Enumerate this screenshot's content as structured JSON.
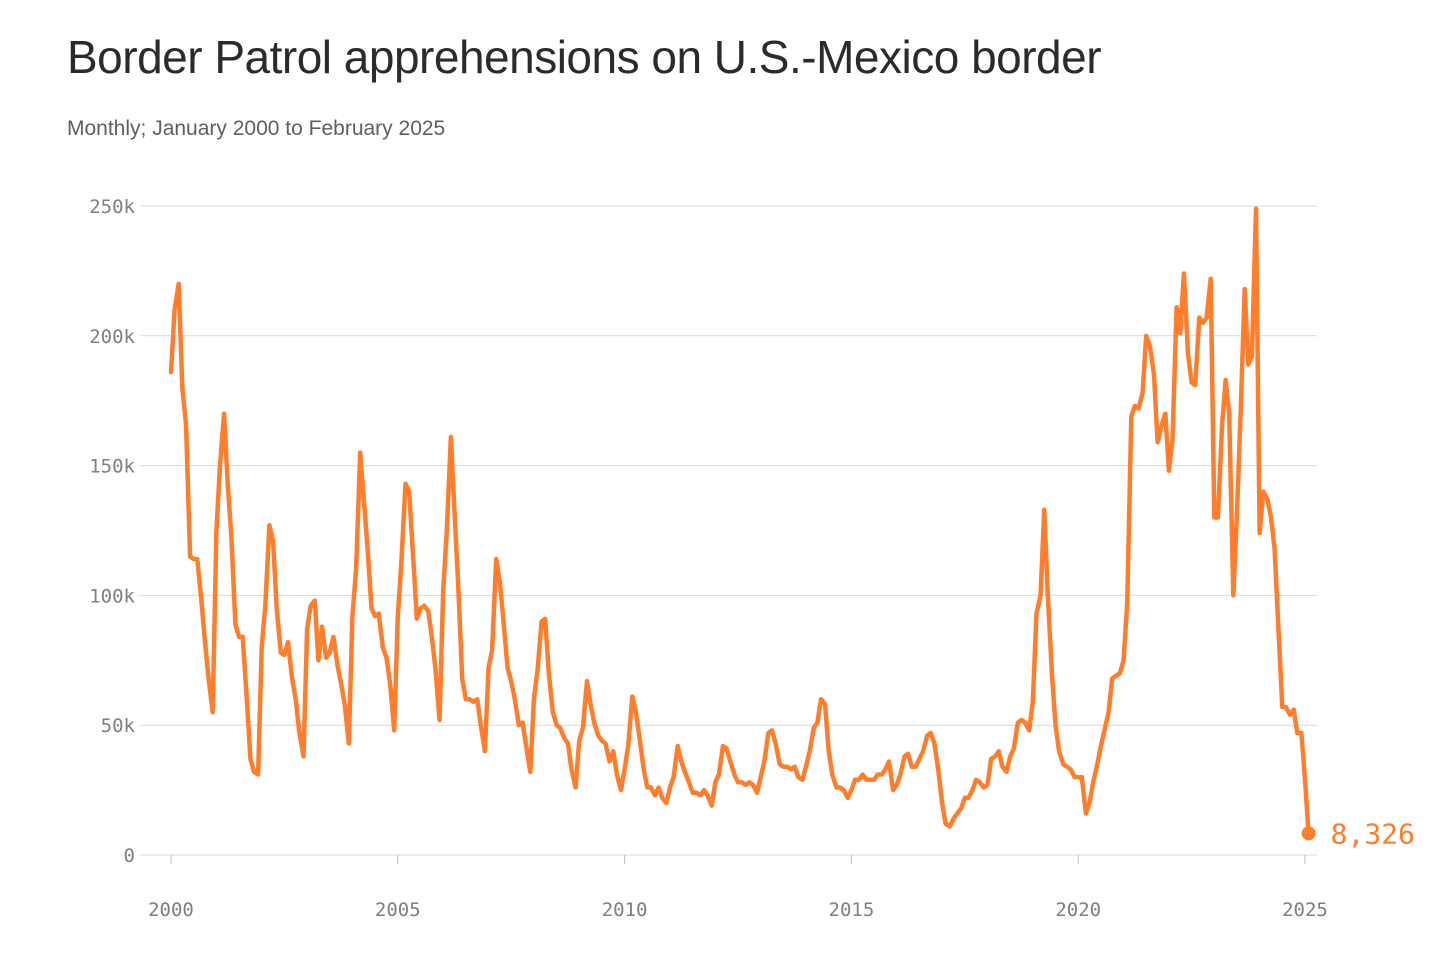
{
  "title": "Border Patrol apprehensions on U.S.-Mexico border",
  "subtitle": "Monthly; January 2000 to February 2025",
  "colors": {
    "line": "#ff7e2e",
    "text": "#2b2b2b",
    "grid": "#d9d9d9",
    "tick": "#7f7f7f"
  },
  "chart_data": {
    "type": "line",
    "title": "Border Patrol apprehensions on U.S.-Mexico border",
    "subtitle": "Monthly; January 2000 to February 2025",
    "xlabel": "",
    "ylabel": "",
    "xlim": [
      2000,
      2025.1
    ],
    "ylim": [
      0,
      250000
    ],
    "grid": true,
    "x_ticks": [
      2000,
      2005,
      2010,
      2015,
      2020,
      2025
    ],
    "x_tick_labels": [
      "2000",
      "2005",
      "2010",
      "2015",
      "2020",
      "2025"
    ],
    "y_ticks": [
      0,
      50000,
      100000,
      150000,
      200000,
      250000
    ],
    "y_tick_labels": [
      "0",
      "50k",
      "100k",
      "150k",
      "200k",
      "250k"
    ],
    "end_label": "8,326",
    "series": [
      {
        "name": "Apprehensions",
        "x": [
          2000.0,
          2000.08,
          2000.17,
          2000.25,
          2000.33,
          2000.42,
          2000.5,
          2000.58,
          2000.67,
          2000.75,
          2000.83,
          2000.92,
          2001.0,
          2001.08,
          2001.17,
          2001.25,
          2001.33,
          2001.42,
          2001.5,
          2001.58,
          2001.67,
          2001.75,
          2001.83,
          2001.92,
          2002.0,
          2002.08,
          2002.17,
          2002.25,
          2002.33,
          2002.42,
          2002.5,
          2002.58,
          2002.67,
          2002.75,
          2002.83,
          2002.92,
          2003.0,
          2003.08,
          2003.17,
          2003.25,
          2003.33,
          2003.42,
          2003.5,
          2003.58,
          2003.67,
          2003.75,
          2003.83,
          2003.92,
          2004.0,
          2004.08,
          2004.17,
          2004.25,
          2004.33,
          2004.42,
          2004.5,
          2004.58,
          2004.67,
          2004.75,
          2004.83,
          2004.92,
          2005.0,
          2005.08,
          2005.17,
          2005.25,
          2005.33,
          2005.42,
          2005.5,
          2005.58,
          2005.67,
          2005.75,
          2005.83,
          2005.92,
          2006.0,
          2006.08,
          2006.17,
          2006.25,
          2006.33,
          2006.42,
          2006.5,
          2006.58,
          2006.67,
          2006.75,
          2006.83,
          2006.92,
          2007.0,
          2007.08,
          2007.17,
          2007.25,
          2007.33,
          2007.42,
          2007.5,
          2007.58,
          2007.67,
          2007.75,
          2007.83,
          2007.92,
          2008.0,
          2008.08,
          2008.17,
          2008.25,
          2008.33,
          2008.42,
          2008.5,
          2008.58,
          2008.67,
          2008.75,
          2008.83,
          2008.92,
          2009.0,
          2009.08,
          2009.17,
          2009.25,
          2009.33,
          2009.42,
          2009.5,
          2009.58,
          2009.67,
          2009.75,
          2009.83,
          2009.92,
          2010.0,
          2010.08,
          2010.17,
          2010.25,
          2010.33,
          2010.42,
          2010.5,
          2010.58,
          2010.67,
          2010.75,
          2010.83,
          2010.92,
          2011.0,
          2011.08,
          2011.17,
          2011.25,
          2011.33,
          2011.42,
          2011.5,
          2011.58,
          2011.67,
          2011.75,
          2011.83,
          2011.92,
          2012.0,
          2012.08,
          2012.17,
          2012.25,
          2012.33,
          2012.42,
          2012.5,
          2012.58,
          2012.67,
          2012.75,
          2012.83,
          2012.92,
          2013.0,
          2013.08,
          2013.17,
          2013.25,
          2013.33,
          2013.42,
          2013.5,
          2013.58,
          2013.67,
          2013.75,
          2013.83,
          2013.92,
          2014.0,
          2014.08,
          2014.17,
          2014.25,
          2014.33,
          2014.42,
          2014.5,
          2014.58,
          2014.67,
          2014.75,
          2014.83,
          2014.92,
          2015.0,
          2015.08,
          2015.17,
          2015.25,
          2015.33,
          2015.42,
          2015.5,
          2015.58,
          2015.67,
          2015.75,
          2015.83,
          2015.92,
          2016.0,
          2016.08,
          2016.17,
          2016.25,
          2016.33,
          2016.42,
          2016.5,
          2016.58,
          2016.67,
          2016.75,
          2016.83,
          2016.92,
          2017.0,
          2017.08,
          2017.17,
          2017.25,
          2017.33,
          2017.42,
          2017.5,
          2017.58,
          2017.67,
          2017.75,
          2017.83,
          2017.92,
          2018.0,
          2018.08,
          2018.17,
          2018.25,
          2018.33,
          2018.42,
          2018.5,
          2018.58,
          2018.67,
          2018.75,
          2018.83,
          2018.92,
          2019.0,
          2019.08,
          2019.17,
          2019.25,
          2019.33,
          2019.42,
          2019.5,
          2019.58,
          2019.67,
          2019.75,
          2019.83,
          2019.92,
          2020.0,
          2020.08,
          2020.17,
          2020.25,
          2020.33,
          2020.42,
          2020.5,
          2020.58,
          2020.67,
          2020.75,
          2020.83,
          2020.92,
          2021.0,
          2021.08,
          2021.17,
          2021.25,
          2021.33,
          2021.42,
          2021.5,
          2021.58,
          2021.67,
          2021.75,
          2021.83,
          2021.92,
          2022.0,
          2022.08,
          2022.17,
          2022.25,
          2022.33,
          2022.42,
          2022.5,
          2022.58,
          2022.67,
          2022.75,
          2022.83,
          2022.92,
          2023.0,
          2023.08,
          2023.17,
          2023.25,
          2023.33,
          2023.42,
          2023.5,
          2023.58,
          2023.67,
          2023.75,
          2023.83,
          2023.92,
          2024.0,
          2024.08,
          2024.17,
          2024.25,
          2024.33,
          2024.42,
          2024.5,
          2024.58,
          2024.67,
          2024.75,
          2024.83,
          2024.92,
          2025.0,
          2025.08
        ],
        "y": [
          186000,
          210000,
          220000,
          180000,
          166000,
          115000,
          114000,
          114000,
          98000,
          82000,
          68000,
          55000,
          125000,
          150000,
          170000,
          143000,
          123000,
          89000,
          84000,
          84000,
          60000,
          37000,
          32000,
          31000,
          80000,
          96000,
          127000,
          121000,
          95000,
          78000,
          77000,
          82000,
          68000,
          60000,
          47000,
          38000,
          87000,
          96000,
          98000,
          75000,
          88000,
          76000,
          78000,
          84000,
          73000,
          66000,
          58000,
          43000,
          92000,
          110000,
          155000,
          137000,
          119000,
          95000,
          92000,
          93000,
          80000,
          76000,
          66000,
          48000,
          92000,
          113000,
          143000,
          140000,
          117000,
          91000,
          95000,
          96000,
          94000,
          84000,
          72000,
          52000,
          102000,
          125000,
          161000,
          132000,
          105000,
          68000,
          60000,
          60000,
          59000,
          60000,
          50000,
          40000,
          72000,
          79000,
          114000,
          105000,
          90000,
          72000,
          67000,
          60000,
          50000,
          51000,
          42000,
          32000,
          60000,
          71000,
          90000,
          91000,
          70000,
          55000,
          50000,
          49000,
          45000,
          43000,
          33000,
          26000,
          44000,
          49000,
          67000,
          58000,
          51000,
          46000,
          44000,
          43000,
          36000,
          40000,
          31000,
          25000,
          33000,
          42000,
          61000,
          55000,
          45000,
          33000,
          26000,
          26000,
          23000,
          26000,
          22000,
          20000,
          26000,
          30000,
          42000,
          36000,
          32000,
          28000,
          24000,
          24000,
          23000,
          25000,
          23000,
          19000,
          28000,
          31000,
          42000,
          41000,
          36000,
          31000,
          28000,
          28000,
          27000,
          28000,
          27000,
          24000,
          30000,
          36000,
          47000,
          48000,
          43000,
          35000,
          34000,
          34000,
          33000,
          34000,
          30000,
          29000,
          34000,
          40000,
          49000,
          51000,
          60000,
          58000,
          40000,
          31000,
          26000,
          26000,
          25000,
          22000,
          25000,
          29000,
          29000,
          31000,
          29000,
          29000,
          29000,
          31000,
          31000,
          33000,
          36000,
          25000,
          27000,
          31000,
          38000,
          39000,
          34000,
          34000,
          37000,
          40000,
          46000,
          47000,
          43000,
          32000,
          20000,
          12000,
          11000,
          14000,
          16000,
          18000,
          22000,
          22000,
          25000,
          29000,
          28000,
          26000,
          27000,
          37000,
          38000,
          40000,
          34000,
          32000,
          38000,
          41000,
          51000,
          52000,
          51000,
          48000,
          59000,
          93000,
          100000,
          133000,
          100000,
          70000,
          50000,
          40000,
          35000,
          34000,
          33000,
          30000,
          30000,
          30000,
          16000,
          20000,
          28000,
          35000,
          42000,
          48000,
          55000,
          68000,
          69000,
          70000,
          75000,
          97000,
          169000,
          173000,
          172000,
          178000,
          200000,
          196000,
          185000,
          159000,
          165000,
          170000,
          148000,
          160000,
          211000,
          201000,
          224000,
          193000,
          182000,
          181000,
          207000,
          205000,
          207000,
          222000,
          130000,
          130000,
          165000,
          183000,
          170000,
          100000,
          132000,
          170000,
          218000,
          189000,
          192000,
          249000,
          124000,
          140000,
          137000,
          130000,
          118000,
          85000,
          57000,
          57000,
          54000,
          56000,
          47000,
          47000,
          29000,
          8326
        ]
      }
    ]
  }
}
